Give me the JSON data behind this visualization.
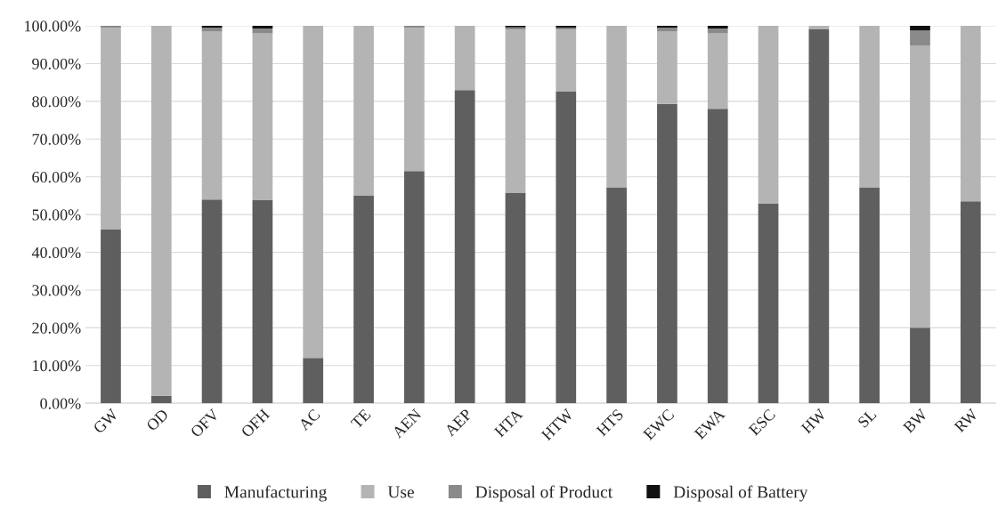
{
  "chart_data": {
    "type": "bar",
    "stacked": true,
    "categories": [
      "GW",
      "OD",
      "OFV",
      "OFH",
      "AC",
      "TE",
      "AEN",
      "AEP",
      "HTA",
      "HTW",
      "HTS",
      "EWC",
      "EWA",
      "ESC",
      "HW",
      "SL",
      "BW",
      "RW"
    ],
    "series": [
      {
        "name": "Manufacturing",
        "color": "#5f5f5f",
        "values": [
          46,
          2,
          54,
          53.8,
          12,
          55,
          61.5,
          83,
          55.8,
          82.7,
          57.2,
          79.3,
          78,
          53,
          99.2,
          57.2,
          20,
          53.5
        ]
      },
      {
        "name": "Use",
        "color": "#b4b4b4",
        "values": [
          53.5,
          98,
          44.5,
          44.2,
          88,
          45,
          38,
          17,
          43.2,
          16.3,
          42.8,
          19.2,
          20,
          47,
          0.8,
          42.8,
          74.7,
          46.5
        ]
      },
      {
        "name": "Disposal of Product",
        "color": "#8a8a8a",
        "values": [
          0.5,
          null,
          1,
          1.3,
          null,
          null,
          0.5,
          null,
          0.6,
          0.5,
          null,
          1,
          1.3,
          null,
          null,
          null,
          4.1,
          null
        ]
      },
      {
        "name": "Disposal of Battery",
        "color": "#111111",
        "values": [
          null,
          null,
          0.5,
          0.7,
          null,
          null,
          null,
          null,
          0.4,
          0.5,
          null,
          0.5,
          0.7,
          null,
          null,
          null,
          1.2,
          null
        ]
      }
    ],
    "ylim": [
      0,
      100
    ],
    "yticks": [
      {
        "value": 0,
        "label": "0.00%"
      },
      {
        "value": 10,
        "label": "10.00%"
      },
      {
        "value": 20,
        "label": "20.00%"
      },
      {
        "value": 30,
        "label": "30.00%"
      },
      {
        "value": 40,
        "label": "40.00%"
      },
      {
        "value": 50,
        "label": "50.00%"
      },
      {
        "value": 60,
        "label": "60.00%"
      },
      {
        "value": 70,
        "label": "70.00%"
      },
      {
        "value": 80,
        "label": "80.00%"
      },
      {
        "value": 90,
        "label": "90.00%"
      },
      {
        "value": 100,
        "label": "100.00%"
      }
    ],
    "grid": "y",
    "legend": "bottom"
  }
}
